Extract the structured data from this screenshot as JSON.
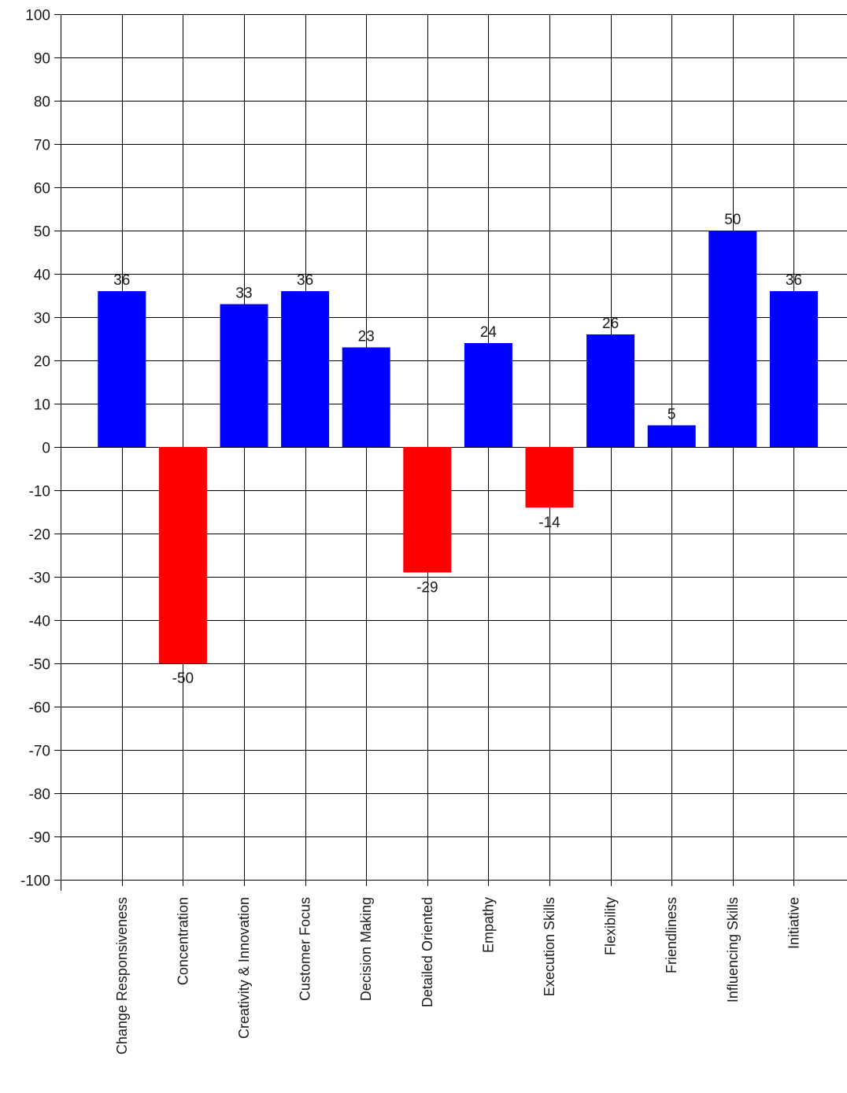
{
  "chart_data": {
    "type": "bar",
    "title": "",
    "xlabel": "",
    "ylabel": "",
    "ylim": [
      -100,
      100
    ],
    "ytick_step": 10,
    "yticks": [
      100,
      90,
      80,
      70,
      60,
      50,
      40,
      30,
      20,
      10,
      0,
      -10,
      -20,
      -30,
      -40,
      -50,
      -60,
      -70,
      -80,
      -90,
      -100
    ],
    "grid": true,
    "legend": "none",
    "categories": [
      "Change Responsiveness",
      "Concentration",
      "Creativity & Innovation",
      "Customer Focus",
      "Decision Making",
      "Detailed Oriented",
      "Empathy",
      "Execution Skills",
      "Flexibility",
      "Friendliness",
      "Influencing Skills",
      "Initiative"
    ],
    "values": [
      36,
      -50,
      33,
      36,
      23,
      -29,
      24,
      -14,
      26,
      5,
      50,
      36
    ],
    "data_labels": [
      "36",
      "-50",
      "33",
      "36",
      "23",
      "-29",
      "24",
      "-14",
      "26",
      "5",
      "50",
      "36"
    ],
    "colors": {
      "positive": "#0000ff",
      "negative": "#ff0000",
      "grid": "#000000",
      "background": "#ffffff"
    }
  }
}
